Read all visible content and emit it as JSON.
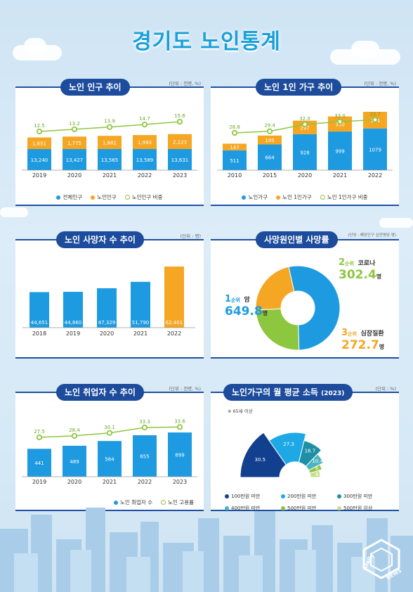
{
  "page": {
    "title": "경기도 노인통계"
  },
  "colors": {
    "blue": "#1e9be0",
    "orange": "#f5a623",
    "green": "#8dc63f",
    "navy": "#1d4c9d"
  },
  "panels": {
    "elderly_population": {
      "title": "노인 인구 추이",
      "unit": "(단위 : 천명, %)",
      "legend": [
        "전체인구",
        "노인인구",
        "노인인구 비중"
      ]
    },
    "single_household": {
      "title": "노인 1인 가구 추이",
      "unit": "(단위 : 천명, %)",
      "legend": [
        "노인가구",
        "노인 1인가구",
        "노인 1인가구 비중"
      ]
    },
    "deaths": {
      "title": "노인 사망자 수 추이",
      "unit": "(단위 : 명)"
    },
    "death_causes": {
      "title": "사망원인별 사망률",
      "unit": "(단위 : 해당인구 십만명당 명)",
      "items": [
        {
          "rank": "1",
          "rank_suffix": "순위",
          "name": "암",
          "value": "649.8",
          "unit": "명"
        },
        {
          "rank": "2",
          "rank_suffix": "순위",
          "name": "코로나",
          "value": "302.4",
          "unit": "명"
        },
        {
          "rank": "3",
          "rank_suffix": "순위",
          "name": "심장질환",
          "value": "272.7",
          "unit": "명"
        }
      ]
    },
    "employed": {
      "title": "노인 취업자 수 추이",
      "unit": "(단위 : 천명, %)",
      "legend": [
        "노인 취업자 수",
        "노인 고용률"
      ]
    },
    "income": {
      "title": "노인가구의 월 평균 소득",
      "title_suffix": "(2023)",
      "unit": "(단위 : %)",
      "note": "※ 65세 이상",
      "legend": [
        "100만원 미만",
        "200만원 미만",
        "300만원 미만",
        "400만원 미만",
        "500만원 미만",
        "500만원 이상"
      ]
    }
  },
  "logo": {
    "line1": "Daily",
    "line2": "NEWS"
  },
  "chart_data": [
    {
      "type": "bar",
      "id": "elderly_population",
      "categories": [
        "2019",
        "2020",
        "2021",
        "2022",
        "2023"
      ],
      "series": [
        {
          "name": "전체인구",
          "values": [
            13240,
            13427,
            13565,
            13589,
            13631
          ],
          "labels": [
            "13,240",
            "13,427",
            "13,565",
            "13,589",
            "13,631"
          ]
        },
        {
          "name": "노인인구",
          "values": [
            1651,
            1775,
            1881,
            1993,
            2123
          ],
          "labels": [
            "1,651",
            "1,775",
            "1,881",
            "1,993",
            "2,123"
          ]
        },
        {
          "name": "노인인구 비중",
          "type": "line",
          "values": [
            12.5,
            13.2,
            13.9,
            14.7,
            15.6
          ],
          "labels": [
            "12.5",
            "13.2",
            "13.9",
            "14.7",
            "15.6"
          ]
        }
      ]
    },
    {
      "type": "bar",
      "id": "single_household",
      "categories": [
        "2010",
        "2015",
        "2020",
        "2021",
        "2022"
      ],
      "series": [
        {
          "name": "노인가구",
          "values": [
            511,
            664,
            928,
            999,
            1079
          ],
          "labels": [
            "511",
            "664",
            "928",
            "999",
            "1079"
          ]
        },
        {
          "name": "노인 1인가구",
          "values": [
            147,
            195,
            297,
            330,
            364
          ],
          "labels": [
            "147",
            "195",
            "297",
            "330",
            "364"
          ]
        },
        {
          "name": "노인 1인가구 비중",
          "type": "line",
          "values": [
            28.8,
            29.4,
            32.0,
            33.0,
            33.7
          ],
          "labels": [
            "28.8",
            "29.4",
            "32.0",
            "33.0",
            "33.7"
          ]
        }
      ]
    },
    {
      "type": "bar",
      "id": "deaths",
      "categories": [
        "2018",
        "2019",
        "2020",
        "2021",
        "2022"
      ],
      "values": [
        44651,
        44860,
        47329,
        51790,
        62401
      ],
      "labels": [
        "44,651",
        "44,860",
        "47,329",
        "51,790",
        "62,401"
      ]
    },
    {
      "type": "pie",
      "id": "death_causes",
      "categories": [
        "암",
        "코로나",
        "심장질환"
      ],
      "values": [
        649.8,
        302.4,
        272.7
      ]
    },
    {
      "type": "bar",
      "id": "employed",
      "categories": [
        "2019",
        "2020",
        "2021",
        "2022",
        "2023"
      ],
      "series": [
        {
          "name": "노인 취업자 수",
          "values": [
            441,
            489,
            564,
            655,
            699
          ],
          "labels": [
            "441",
            "489",
            "564",
            "655",
            "699"
          ]
        },
        {
          "name": "노인 고용률",
          "type": "line",
          "values": [
            27.5,
            28.4,
            30.1,
            33.3,
            33.6
          ],
          "labels": [
            "27.5",
            "28.4",
            "30.1",
            "33.3",
            "33.6"
          ]
        }
      ]
    },
    {
      "type": "pie",
      "id": "income",
      "categories": [
        "100만원 미만",
        "200만원 미만",
        "300만원 미만",
        "400만원 미만",
        "500만원 미만",
        "500만원 이상"
      ],
      "values": [
        30.5,
        27.3,
        16.7,
        10.4,
        6.3,
        8.8
      ],
      "labels": [
        "30.5",
        "27.3",
        "16.7",
        "10.4",
        "6.3",
        "8.8"
      ]
    }
  ]
}
